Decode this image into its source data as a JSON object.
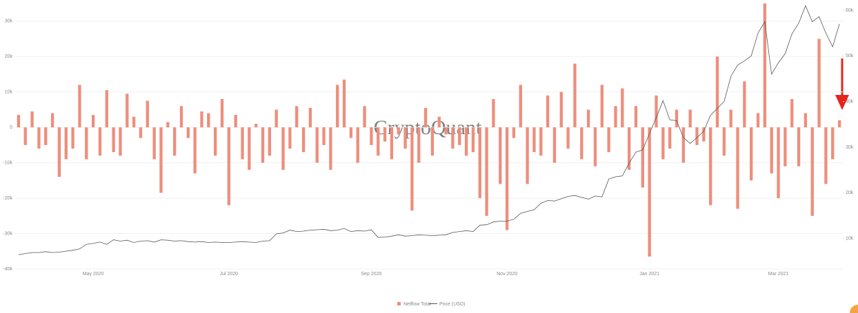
{
  "chart_data": {
    "type": "bar",
    "watermark": "CryptoQuant",
    "categories": [
      null,
      null,
      null,
      null,
      null,
      null,
      null,
      null,
      null,
      null,
      null,
      "May 2020",
      null,
      null,
      null,
      null,
      null,
      null,
      null,
      null,
      null,
      null,
      null,
      null,
      null,
      null,
      null,
      null,
      null,
      null,
      null,
      "Jul 2020",
      null,
      null,
      null,
      null,
      null,
      null,
      null,
      null,
      null,
      null,
      null,
      null,
      null,
      null,
      null,
      null,
      null,
      null,
      null,
      null,
      "Sep 2020",
      null,
      null,
      null,
      null,
      null,
      null,
      null,
      null,
      null,
      null,
      null,
      null,
      null,
      null,
      null,
      null,
      null,
      null,
      null,
      "Nov 2020",
      null,
      null,
      null,
      null,
      null,
      null,
      null,
      null,
      null,
      null,
      null,
      null,
      null,
      null,
      null,
      null,
      null,
      null,
      null,
      null,
      "Jan 2021",
      null,
      null,
      null,
      null,
      null,
      null,
      null,
      null,
      null,
      null,
      null,
      null,
      null,
      null,
      null,
      null,
      null,
      null,
      "Mar 2021",
      null,
      null,
      null,
      null,
      null,
      null,
      null,
      null,
      null
    ],
    "series": [
      {
        "name": "Netflow Total",
        "color": "#ee8e7c",
        "values": [
          3500,
          -5000,
          4500,
          -6000,
          -5000,
          4000,
          -14000,
          -9000,
          -6000,
          12000,
          -9000,
          3500,
          -8000,
          10500,
          -7000,
          -8000,
          9500,
          3000,
          -3000,
          7500,
          -9000,
          -18500,
          1500,
          -8000,
          6000,
          -3000,
          -13000,
          4500,
          4000,
          -8000,
          8000,
          -22000,
          3500,
          -9000,
          -12000,
          1000,
          -10000,
          -8000,
          5000,
          -12000,
          -6000,
          6000,
          -7000,
          5500,
          -10000,
          -5000,
          -12000,
          12000,
          13500,
          -3000,
          -10000,
          6000,
          -5000,
          -8000,
          -4000,
          -9000,
          -2000,
          -6000,
          -23500,
          -10000,
          5500,
          -8000,
          3000,
          -2000,
          -6000,
          -5000,
          -8000,
          -7000,
          -20000,
          -25000,
          8000,
          -16000,
          -29000,
          -3000,
          12000,
          -16000,
          -7000,
          -8000,
          9000,
          -10000,
          10000,
          -6000,
          18000,
          -9000,
          5000,
          -11000,
          12000,
          -7000,
          6000,
          11000,
          -12000,
          6000,
          -17000,
          -36500,
          9000,
          -9000,
          -6000,
          5000,
          -10000,
          5000,
          -5000,
          -4000,
          -22000,
          20000,
          -8000,
          5000,
          -23000,
          13000,
          -15000,
          4000,
          35000,
          -13000,
          -20000,
          -11000,
          8000,
          -11000,
          4000,
          -25000,
          25000,
          -16000,
          -9000,
          2000
        ]
      },
      {
        "name": "Price (USD)",
        "color": "#555555",
        "type": "line",
        "axis": "y2",
        "values": [
          6400,
          6700,
          6900,
          6900,
          7100,
          6900,
          7000,
          7200,
          7400,
          7700,
          8700,
          8900,
          9200,
          8700,
          9700,
          9400,
          9600,
          9100,
          9400,
          9500,
          9200,
          9700,
          9600,
          9400,
          9500,
          9300,
          9200,
          9300,
          9100,
          9200,
          9100,
          9100,
          9200,
          9300,
          9200,
          9100,
          9400,
          9500,
          11000,
          11200,
          11800,
          11500,
          11600,
          11800,
          11900,
          12000,
          11700,
          11800,
          12200,
          11500,
          11700,
          11600,
          11900,
          10200,
          10300,
          10500,
          10800,
          10500,
          10600,
          10800,
          10700,
          10600,
          10700,
          10800,
          11300,
          11500,
          11700,
          11500,
          12900,
          13000,
          13600,
          13800,
          13800,
          14200,
          15500,
          15900,
          16300,
          17700,
          18300,
          18200,
          18700,
          19200,
          19400,
          19000,
          18600,
          19300,
          19100,
          23000,
          23500,
          23700,
          26500,
          28900,
          29400,
          33000,
          36500,
          40200,
          36000,
          35800,
          32100,
          30800,
          32100,
          33500,
          37000,
          38500,
          40000,
          45500,
          48000,
          48900,
          50000,
          55000,
          57500,
          46000,
          48500,
          50500,
          54800,
          57200,
          61000,
          57500,
          58600,
          55000,
          52000,
          57000
        ]
      }
    ],
    "ylim": [
      -40000,
      35000
    ],
    "yticks": [
      {
        "value": -40000,
        "label": "-40k"
      },
      {
        "value": -30000,
        "label": "-30k"
      },
      {
        "value": -20000,
        "label": "-20k"
      },
      {
        "value": -10000,
        "label": "-10k"
      },
      0,
      {
        "value": 10000,
        "label": "10k"
      },
      {
        "value": 20000,
        "label": "20k"
      },
      {
        "value": 30000,
        "label": "30k"
      }
    ],
    "y2lim": [
      3300,
      61500
    ],
    "y2ticks": [
      {
        "value": 10000,
        "label": "10k"
      },
      {
        "value": 20000,
        "label": "20k"
      },
      {
        "value": 30000,
        "label": "30k"
      },
      {
        "value": 40000,
        "label": "40k"
      },
      {
        "value": 50000,
        "label": "50k"
      },
      {
        "value": 60000,
        "label": "60k"
      }
    ],
    "grid": true
  }
}
